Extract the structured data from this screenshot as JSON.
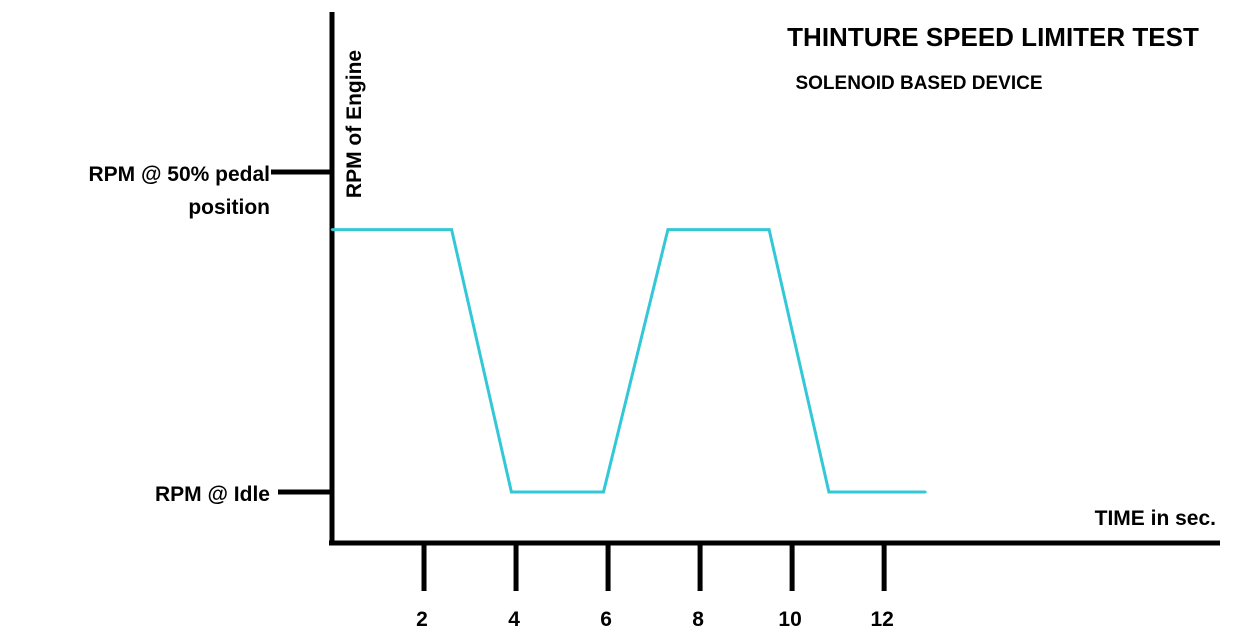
{
  "chart_data": {
    "type": "line",
    "title": "THINTURE SPEED LIMITER TEST",
    "subtitle": "SOLENOID BASED DEVICE",
    "xlabel": "TIME in sec.",
    "ylabel": "RPM of Engine",
    "xlim": [
      0,
      19.3
    ],
    "x_ticks": [
      2,
      4,
      6,
      8,
      10,
      12
    ],
    "y_levels": [
      {
        "label_line1": "RPM @ 50% pedal",
        "label_line2": "position",
        "value": 1
      },
      {
        "label_line1": "RPM @ Idle",
        "label_line2": "",
        "value": 0
      }
    ],
    "ylim": [
      -0.19,
      1.32
    ],
    "series": [
      {
        "color": "#33c8d8",
        "x": [
          0,
          2.6,
          3.9,
          5.9,
          7.3,
          9.5,
          10.8,
          12.9
        ],
        "y": [
          0.82,
          0.82,
          0,
          0,
          0.82,
          0.82,
          0,
          0
        ]
      }
    ],
    "title_color": "#3aa0d0",
    "axis_color": "#000000",
    "grid": false,
    "legend": "none"
  }
}
